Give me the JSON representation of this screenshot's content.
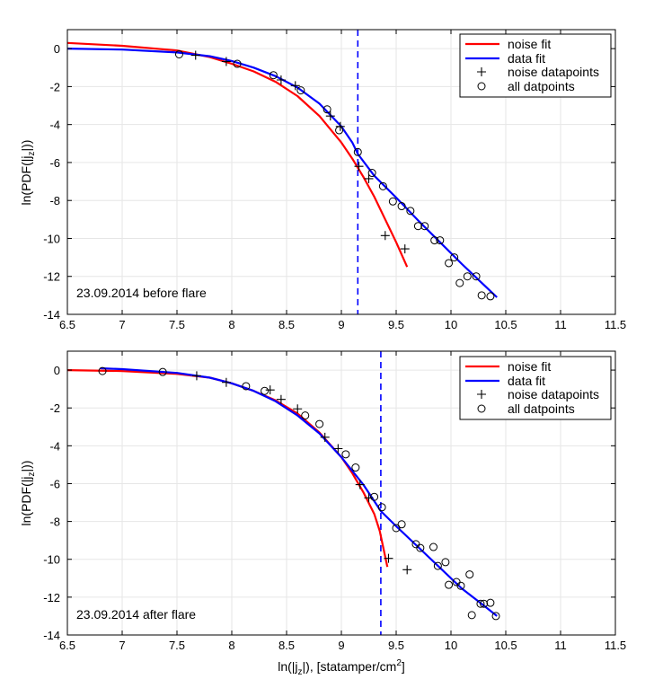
{
  "chart_data": [
    {
      "type": "line",
      "annotation": "23.09.2014 before flare",
      "ylabel_main": "ln(PDF(|j",
      "ylabel_sub": "z",
      "ylabel_tail": "|))",
      "xlim": [
        6.5,
        11.5
      ],
      "ylim": [
        -14,
        1
      ],
      "xticks": [
        6.5,
        7,
        7.5,
        8,
        8.5,
        9,
        9.5,
        10,
        10.5,
        11,
        11.5
      ],
      "xtick_labels": [
        "6.5",
        "7",
        "7.5",
        "8",
        "8.5",
        "9",
        "9.5",
        "10",
        "10.5",
        "11",
        "11.5"
      ],
      "yticks": [
        0,
        -2,
        -4,
        -6,
        -8,
        -10,
        -12,
        -14
      ],
      "ytick_labels": [
        "0",
        "-2",
        "-4",
        "-6",
        "-8",
        "-10",
        "-12",
        "-14"
      ],
      "threshold_x": 9.15,
      "legend": [
        "noise fit",
        "data fit",
        "noise datapoints",
        "all datpoints"
      ],
      "colors": {
        "noise_fit": "#ff0000",
        "data_fit": "#0000ff",
        "threshold": "#0000ff",
        "grid": "#e6e6e6"
      },
      "series": [
        {
          "name": "noise fit",
          "kind": "line",
          "x": [
            6.5,
            7.0,
            7.5,
            7.8,
            8.0,
            8.2,
            8.4,
            8.6,
            8.8,
            9.0,
            9.1,
            9.2,
            9.3,
            9.4,
            9.5,
            9.6
          ],
          "y": [
            0.3,
            0.15,
            -0.1,
            -0.45,
            -0.8,
            -1.2,
            -1.75,
            -2.5,
            -3.55,
            -4.95,
            -5.8,
            -6.75,
            -7.8,
            -9.0,
            -10.2,
            -11.5
          ]
        },
        {
          "name": "data fit",
          "kind": "line",
          "x": [
            6.5,
            7.0,
            7.5,
            7.8,
            8.0,
            8.2,
            8.4,
            8.6,
            8.8,
            9.0,
            9.1,
            9.15,
            9.3,
            9.5,
            9.7,
            9.9,
            10.1,
            10.3,
            10.42
          ],
          "y": [
            0.0,
            -0.05,
            -0.2,
            -0.4,
            -0.65,
            -1.0,
            -1.45,
            -2.05,
            -2.9,
            -4.1,
            -4.95,
            -5.55,
            -6.7,
            -7.85,
            -9.05,
            -10.2,
            -11.35,
            -12.45,
            -13.1
          ]
        },
        {
          "name": "noise datapoints",
          "kind": "plus",
          "x": [
            7.67,
            7.95,
            8.45,
            8.58,
            8.9,
            8.99,
            9.16,
            9.25,
            9.4,
            9.58
          ],
          "y": [
            -0.35,
            -0.68,
            -1.65,
            -1.95,
            -3.55,
            -4.1,
            -6.2,
            -6.85,
            -9.85,
            -10.55
          ]
        },
        {
          "name": "all datpoints",
          "kind": "circle",
          "x": [
            7.52,
            8.05,
            8.38,
            8.63,
            8.87,
            8.98,
            9.15,
            9.28,
            9.38,
            9.47,
            9.55,
            9.63,
            9.7,
            9.76,
            9.85,
            9.9,
            9.98,
            10.03,
            10.08,
            10.15,
            10.23,
            10.28,
            10.36
          ],
          "y": [
            -0.3,
            -0.8,
            -1.4,
            -2.2,
            -3.2,
            -4.3,
            -5.45,
            -6.55,
            -7.25,
            -8.05,
            -8.3,
            -8.55,
            -9.35,
            -9.35,
            -10.1,
            -10.1,
            -11.3,
            -11.0,
            -12.35,
            -12.0,
            -12.0,
            -13.0,
            -13.05
          ]
        }
      ]
    },
    {
      "type": "line",
      "annotation": "23.09.2014 after flare",
      "ylabel_main": "ln(PDF(|j",
      "ylabel_sub": "z",
      "ylabel_tail": "|))",
      "xlabel_main": "ln(|j",
      "xlabel_sub": "z",
      "xlabel_mid": "|), [statamper/cm",
      "xlabel_sup": "2",
      "xlabel_tail": "]",
      "xlim": [
        6.5,
        11.5
      ],
      "ylim": [
        -14,
        1
      ],
      "xticks": [
        6.5,
        7,
        7.5,
        8,
        8.5,
        9,
        9.5,
        10,
        10.5,
        11,
        11.5
      ],
      "xtick_labels": [
        "6.5",
        "7",
        "7.5",
        "8",
        "8.5",
        "9",
        "9.5",
        "10",
        "10.5",
        "11",
        "11.5"
      ],
      "yticks": [
        0,
        -2,
        -4,
        -6,
        -8,
        -10,
        -12,
        -14
      ],
      "ytick_labels": [
        "0",
        "-2",
        "-4",
        "-6",
        "-8",
        "-10",
        "-12",
        "-14"
      ],
      "threshold_x": 9.36,
      "legend": [
        "noise fit",
        "data fit",
        "noise datapoints",
        "all datpoints"
      ],
      "colors": {
        "noise_fit": "#ff0000",
        "data_fit": "#0000ff",
        "threshold": "#0000ff",
        "grid": "#e6e6e6"
      },
      "series": [
        {
          "name": "noise fit",
          "kind": "line",
          "x": [
            6.5,
            7.0,
            7.5,
            7.8,
            8.0,
            8.2,
            8.4,
            8.6,
            8.8,
            9.0,
            9.1,
            9.2,
            9.3,
            9.35,
            9.42
          ],
          "y": [
            0.0,
            -0.05,
            -0.2,
            -0.4,
            -0.7,
            -1.1,
            -1.6,
            -2.3,
            -3.3,
            -4.6,
            -5.45,
            -6.45,
            -7.6,
            -8.5,
            -10.4
          ]
        },
        {
          "name": "data fit",
          "kind": "line",
          "x": [
            6.8,
            7.0,
            7.5,
            7.8,
            8.0,
            8.2,
            8.4,
            8.6,
            8.8,
            9.0,
            9.2,
            9.36,
            9.5,
            9.7,
            9.9,
            10.1,
            10.3,
            10.42
          ],
          "y": [
            0.1,
            0.05,
            -0.15,
            -0.4,
            -0.7,
            -1.1,
            -1.65,
            -2.4,
            -3.35,
            -4.6,
            -6.05,
            -7.45,
            -8.25,
            -9.35,
            -10.45,
            -11.55,
            -12.45,
            -13.0
          ]
        },
        {
          "name": "noise datapoints",
          "kind": "plus",
          "x": [
            7.68,
            7.95,
            8.35,
            8.45,
            8.6,
            8.85,
            8.97,
            9.17,
            9.25,
            9.43,
            9.6
          ],
          "y": [
            -0.3,
            -0.65,
            -1.05,
            -1.55,
            -2.05,
            -3.55,
            -4.15,
            -6.05,
            -6.75,
            -9.95,
            -10.55
          ]
        },
        {
          "name": "all datpoints",
          "kind": "circle",
          "x": [
            6.82,
            7.37,
            8.13,
            8.3,
            8.67,
            8.8,
            9.04,
            9.13,
            9.3,
            9.37,
            9.5,
            9.55,
            9.68,
            9.72,
            9.84,
            9.88,
            9.95,
            9.98,
            10.05,
            10.09,
            10.17,
            10.19,
            10.27,
            10.3,
            10.36,
            10.41
          ],
          "y": [
            -0.05,
            -0.1,
            -0.85,
            -1.1,
            -2.4,
            -2.85,
            -4.45,
            -5.15,
            -6.7,
            -7.25,
            -8.35,
            -8.15,
            -9.2,
            -9.4,
            -9.35,
            -10.35,
            -10.15,
            -11.35,
            -11.2,
            -11.4,
            -10.8,
            -12.95,
            -12.35,
            -12.35,
            -12.3,
            -13.0
          ]
        }
      ]
    }
  ]
}
